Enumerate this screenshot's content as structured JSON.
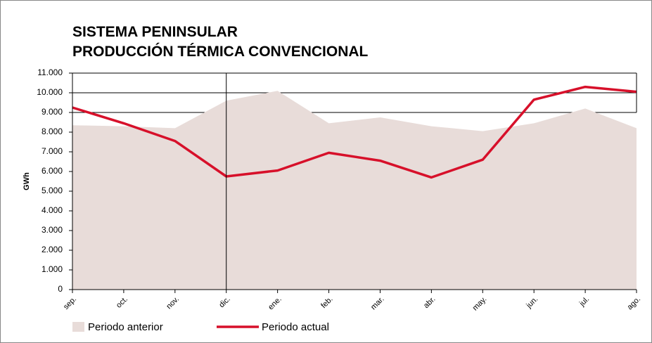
{
  "chart_data": {
    "type": "area-line",
    "title": [
      "SISTEMA PENINSULAR",
      "PRODUCCIÓN TÉRMICA CONVENCIONAL"
    ],
    "ylabel": "GWh",
    "categories": [
      "sep.",
      "oct.",
      "nov.",
      "dic.",
      "ene.",
      "feb.",
      "mar.",
      "abr.",
      "may.",
      "jun.",
      "jul.",
      "ago."
    ],
    "series": [
      {
        "name": "Periodo anterior",
        "color": "#e8dcd9",
        "kind": "area",
        "values": [
          8350,
          8300,
          8200,
          9600,
          10100,
          8450,
          8750,
          8300,
          8050,
          8450,
          9200,
          8200
        ]
      },
      {
        "name": "Periodo actual",
        "color": "#d7102a",
        "kind": "line",
        "values": [
          9250,
          8450,
          7550,
          5750,
          6050,
          6950,
          6550,
          5700,
          6600,
          9650,
          10300,
          10050
        ]
      }
    ],
    "ylim": [
      0,
      11000
    ],
    "yticks": [
      0,
      {
        "value": 1000,
        "label": "1.000"
      },
      {
        "value": 2000,
        "label": "2.000"
      },
      {
        "value": 3000,
        "label": "3.000"
      },
      {
        "value": 4000,
        "label": "4.000"
      },
      {
        "value": 5000,
        "label": "5.000"
      },
      {
        "value": 6000,
        "label": "6.000"
      },
      {
        "value": 7000,
        "label": "7.000"
      },
      {
        "value": 8000,
        "label": "8.000"
      },
      {
        "value": 9000,
        "label": "9.000"
      },
      {
        "value": 10000,
        "label": "10.000"
      },
      {
        "value": 11000,
        "label": "11.000"
      }
    ],
    "grid": true
  }
}
